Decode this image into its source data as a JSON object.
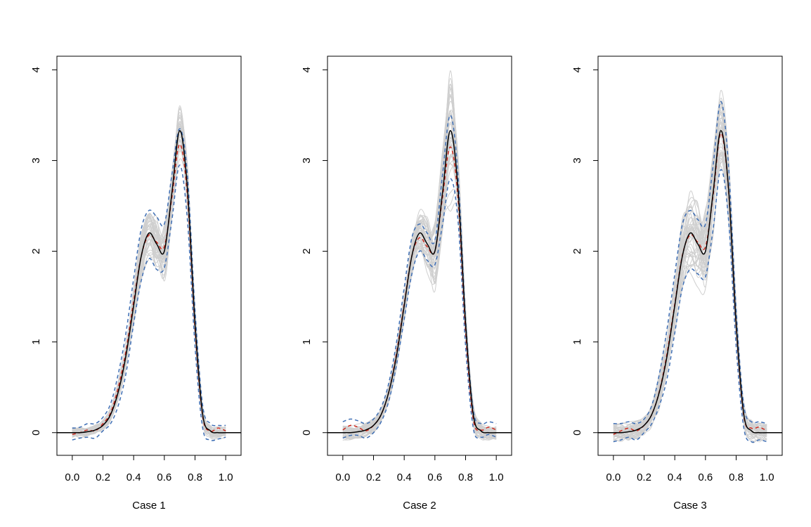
{
  "colors": {
    "true_curve": "#000000",
    "mean_curve": "#cc2a1e",
    "band_curve": "#3f6fb5",
    "sample_curves": "#cfcfcf",
    "axis": "#000000"
  },
  "chart_data": [
    {
      "type": "line",
      "xlabel": "Case 1",
      "ylabel": "",
      "xlim": [
        -0.1,
        1.1
      ],
      "ylim": [
        -0.25,
        4.15
      ],
      "xticks": [
        0.0,
        0.2,
        0.4,
        0.6,
        0.8,
        1.0
      ],
      "xtick_labels": [
        "0.0",
        "0.2",
        "0.4",
        "0.6",
        "0.8",
        "1.0"
      ],
      "yticks": [
        0,
        1,
        2,
        3,
        4
      ],
      "ytick_labels": [
        "0",
        "1",
        "2",
        "3",
        "4"
      ],
      "grid": false,
      "x": [
        -0.1,
        0.0,
        0.05,
        0.1,
        0.15,
        0.2,
        0.25,
        0.3,
        0.35,
        0.4,
        0.45,
        0.5,
        0.55,
        0.6,
        0.65,
        0.7,
        0.75,
        0.8,
        0.85,
        0.9,
        0.95,
        1.0,
        1.1
      ],
      "series": [
        {
          "role": "true",
          "values": [
            0,
            0,
            0,
            0.01,
            0.03,
            0.08,
            0.2,
            0.45,
            0.85,
            1.4,
            1.95,
            2.2,
            2.08,
            2.0,
            2.65,
            3.33,
            2.7,
            1.2,
            0.2,
            0.02,
            0,
            0,
            0
          ]
        },
        {
          "role": "mean",
          "values": [
            null,
            -0.02,
            0.0,
            0.03,
            0.02,
            0.1,
            0.22,
            0.5,
            0.9,
            1.45,
            1.95,
            2.18,
            2.1,
            2.05,
            2.6,
            3.18,
            2.62,
            1.15,
            0.18,
            0.02,
            0.05,
            0.02,
            null
          ]
        },
        {
          "role": "upper_band",
          "values": [
            null,
            0.05,
            0.06,
            0.1,
            0.1,
            0.17,
            0.32,
            0.65,
            1.1,
            1.7,
            2.25,
            2.45,
            2.38,
            2.3,
            2.85,
            3.35,
            2.85,
            1.35,
            0.3,
            0.1,
            0.08,
            0.08,
            null
          ]
        },
        {
          "role": "lower_band",
          "values": [
            null,
            -0.08,
            -0.06,
            -0.05,
            -0.06,
            0.02,
            0.1,
            0.3,
            0.65,
            1.2,
            1.68,
            1.92,
            1.8,
            1.82,
            2.35,
            2.95,
            2.35,
            0.95,
            0.05,
            -0.08,
            -0.07,
            -0.05,
            null
          ]
        }
      ],
      "sample_spread": {
        "values": [
          0,
          0.06,
          0.06,
          0.06,
          0.06,
          0.06,
          0.08,
          0.12,
          0.16,
          0.2,
          0.3,
          0.35,
          0.38,
          0.33,
          0.3,
          0.3,
          0.25,
          0.18,
          0.1,
          0.07,
          0.06,
          0.06,
          0
        ]
      }
    },
    {
      "type": "line",
      "xlabel": "Case 2",
      "ylabel": "",
      "xlim": [
        -0.1,
        1.1
      ],
      "ylim": [
        -0.25,
        4.15
      ],
      "xticks": [
        0.0,
        0.2,
        0.4,
        0.6,
        0.8,
        1.0
      ],
      "xtick_labels": [
        "0.0",
        "0.2",
        "0.4",
        "0.6",
        "0.8",
        "1.0"
      ],
      "yticks": [
        0,
        1,
        2,
        3,
        4
      ],
      "ytick_labels": [
        "0",
        "1",
        "2",
        "3",
        "4"
      ],
      "grid": false,
      "x": [
        -0.1,
        0.0,
        0.05,
        0.1,
        0.15,
        0.2,
        0.25,
        0.3,
        0.35,
        0.4,
        0.45,
        0.5,
        0.55,
        0.6,
        0.65,
        0.7,
        0.75,
        0.8,
        0.85,
        0.9,
        0.95,
        1.0,
        1.1
      ],
      "series": [
        {
          "role": "true",
          "values": [
            0,
            0,
            0,
            0.01,
            0.03,
            0.08,
            0.2,
            0.45,
            0.85,
            1.4,
            1.95,
            2.2,
            2.08,
            2.0,
            2.65,
            3.33,
            2.7,
            1.2,
            0.2,
            0.02,
            0,
            0,
            0
          ]
        },
        {
          "role": "mean",
          "values": [
            null,
            0.03,
            0.08,
            0.06,
            0.02,
            0.08,
            0.2,
            0.45,
            0.88,
            1.42,
            1.95,
            2.15,
            2.05,
            2.0,
            2.6,
            3.15,
            2.6,
            1.12,
            0.15,
            0.03,
            0.06,
            0.03,
            null
          ]
        },
        {
          "role": "upper_band",
          "values": [
            null,
            0.12,
            0.15,
            0.13,
            0.1,
            0.15,
            0.28,
            0.55,
            1.0,
            1.6,
            2.15,
            2.3,
            2.2,
            2.12,
            2.85,
            3.5,
            2.85,
            1.25,
            0.25,
            0.1,
            0.12,
            0.1,
            null
          ]
        },
        {
          "role": "lower_band",
          "values": [
            null,
            -0.06,
            -0.03,
            -0.03,
            -0.06,
            0.0,
            0.12,
            0.35,
            0.75,
            1.25,
            1.75,
            2.0,
            1.9,
            1.85,
            2.3,
            2.8,
            2.35,
            0.95,
            0.05,
            -0.05,
            -0.02,
            -0.05,
            null
          ]
        }
      ],
      "sample_spread": {
        "values": [
          0,
          0.08,
          0.08,
          0.08,
          0.08,
          0.08,
          0.08,
          0.1,
          0.12,
          0.16,
          0.2,
          0.22,
          0.3,
          0.4,
          0.55,
          0.8,
          0.4,
          0.2,
          0.12,
          0.09,
          0.08,
          0.08,
          0
        ]
      }
    },
    {
      "type": "line",
      "xlabel": "Case 3",
      "ylabel": "",
      "xlim": [
        -0.1,
        1.1
      ],
      "ylim": [
        -0.25,
        4.15
      ],
      "xticks": [
        0.0,
        0.2,
        0.4,
        0.6,
        0.8,
        1.0
      ],
      "xtick_labels": [
        "0.0",
        "0.2",
        "0.4",
        "0.6",
        "0.8",
        "1.0"
      ],
      "yticks": [
        0,
        1,
        2,
        3,
        4
      ],
      "ytick_labels": [
        "0",
        "1",
        "2",
        "3",
        "4"
      ],
      "grid": false,
      "x": [
        -0.1,
        0.0,
        0.05,
        0.1,
        0.15,
        0.2,
        0.25,
        0.3,
        0.35,
        0.4,
        0.45,
        0.5,
        0.55,
        0.6,
        0.65,
        0.7,
        0.75,
        0.8,
        0.85,
        0.9,
        0.95,
        1.0,
        1.1
      ],
      "series": [
        {
          "role": "true",
          "values": [
            0,
            0,
            0,
            0.01,
            0.03,
            0.08,
            0.2,
            0.45,
            0.85,
            1.4,
            1.95,
            2.2,
            2.08,
            2.0,
            2.65,
            3.33,
            2.7,
            1.2,
            0.2,
            0.02,
            0,
            0,
            0
          ]
        },
        {
          "role": "mean",
          "values": [
            null,
            -0.02,
            0.02,
            0.05,
            0.02,
            0.08,
            0.2,
            0.46,
            0.88,
            1.42,
            1.96,
            2.18,
            2.1,
            2.05,
            2.62,
            3.3,
            2.68,
            1.18,
            0.18,
            0.05,
            0.06,
            0.02,
            null
          ]
        },
        {
          "role": "upper_band",
          "values": [
            null,
            0.1,
            0.1,
            0.12,
            0.1,
            0.15,
            0.3,
            0.65,
            1.15,
            1.75,
            2.3,
            2.45,
            2.35,
            2.3,
            2.95,
            3.65,
            2.95,
            1.35,
            0.3,
            0.12,
            0.12,
            0.1,
            null
          ]
        },
        {
          "role": "lower_band",
          "values": [
            null,
            -0.1,
            -0.08,
            -0.05,
            -0.08,
            0.0,
            0.1,
            0.3,
            0.6,
            1.1,
            1.6,
            1.8,
            1.75,
            1.72,
            2.25,
            2.9,
            2.35,
            0.95,
            0.05,
            -0.1,
            -0.08,
            -0.1,
            null
          ]
        }
      ],
      "sample_spread": {
        "values": [
          0,
          0.1,
          0.1,
          0.1,
          0.1,
          0.1,
          0.12,
          0.18,
          0.25,
          0.3,
          0.38,
          0.45,
          0.42,
          0.42,
          0.45,
          0.45,
          0.35,
          0.22,
          0.15,
          0.12,
          0.1,
          0.1,
          0
        ]
      }
    }
  ]
}
